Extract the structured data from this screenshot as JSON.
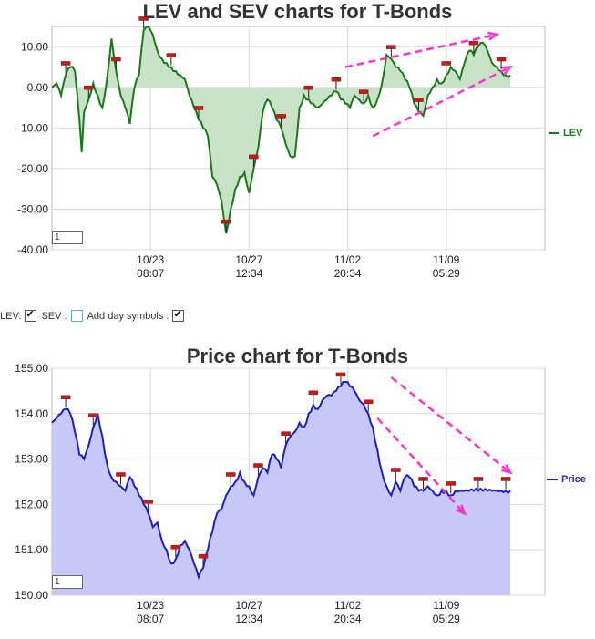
{
  "chart_data": [
    {
      "type": "line",
      "title": "LEV and SEV charts for T-Bonds",
      "ylim": [
        -40,
        15
      ],
      "yticks": [
        "10.00",
        "0.00",
        "-10.00",
        "-20.00",
        "-30.00",
        "-40.00"
      ],
      "ytick_values": [
        10,
        0,
        -10,
        -20,
        -30,
        -40
      ],
      "xticks": [
        {
          "date": "10/23",
          "time": "08:07"
        },
        {
          "date": "10/27",
          "time": "12:34"
        },
        {
          "date": "11/02",
          "time": "20:34"
        },
        {
          "date": "11/09",
          "time": "05:29"
        }
      ],
      "xtick_positions": [
        0.2,
        0.4,
        0.6,
        0.8
      ],
      "grid": true,
      "legend": "right",
      "series": [
        {
          "name": "LEV",
          "color": "#1a7a1a",
          "fill": "#c8e2c8",
          "x": [
            0,
            0.01,
            0.02,
            0.03,
            0.04,
            0.05,
            0.06,
            0.065,
            0.07,
            0.08,
            0.09,
            0.1,
            0.11,
            0.12,
            0.13,
            0.14,
            0.15,
            0.16,
            0.17,
            0.18,
            0.19,
            0.2,
            0.21,
            0.22,
            0.23,
            0.24,
            0.25,
            0.26,
            0.27,
            0.28,
            0.29,
            0.3,
            0.31,
            0.32,
            0.33,
            0.34,
            0.35,
            0.36,
            0.37,
            0.38,
            0.39,
            0.4,
            0.41,
            0.42,
            0.43,
            0.44,
            0.45,
            0.46,
            0.47,
            0.48,
            0.49,
            0.5,
            0.51,
            0.52,
            0.53,
            0.54,
            0.55,
            0.56,
            0.57,
            0.58,
            0.59,
            0.6,
            0.61,
            0.62,
            0.63,
            0.64,
            0.65,
            0.66,
            0.67,
            0.68,
            0.69,
            0.7,
            0.71,
            0.72,
            0.73,
            0.74,
            0.75,
            0.76,
            0.77,
            0.78,
            0.79,
            0.8,
            0.81,
            0.82,
            0.83,
            0.84,
            0.85,
            0.86,
            0.87,
            0.88,
            0.89,
            0.9,
            0.91,
            0.92,
            0.93,
            0.94,
            0.95,
            0.96,
            0.97,
            0.98,
            0.99,
            1.0
          ],
          "values": [
            0,
            1,
            -2,
            3,
            5,
            4,
            -8,
            -16,
            -6,
            -3,
            1,
            -2,
            -5,
            2,
            12,
            4,
            -2,
            -5,
            -9,
            0,
            3,
            14,
            15,
            13,
            9,
            7,
            6,
            5,
            4,
            3,
            2,
            -2,
            -5,
            -8,
            -10,
            -12,
            -22,
            -24,
            -28,
            -36,
            -30,
            -25,
            -22,
            -21,
            -26,
            -20,
            -15,
            -6,
            -3,
            -5,
            -8,
            -10,
            -14,
            -17,
            -17,
            -5,
            -2,
            -3,
            -4,
            -5,
            -4,
            -3,
            -2,
            -1,
            -3,
            -4,
            -5,
            -2,
            -3,
            -4,
            -2,
            -5,
            -3,
            1,
            8,
            7,
            5,
            4,
            2,
            0,
            -4,
            -6,
            -7,
            -2,
            0,
            2,
            1,
            3,
            5,
            4,
            2,
            6,
            9,
            8,
            10,
            11,
            9,
            6,
            5,
            4,
            3,
            3
          ]
        },
        {
          "name": "SEV",
          "visible": false,
          "values": []
        }
      ]
    },
    {
      "type": "area",
      "title": "Price chart for T-Bonds",
      "ylim": [
        150,
        155
      ],
      "yticks": [
        "155.00",
        "154.00",
        "153.00",
        "152.00",
        "151.00",
        "150.00"
      ],
      "ytick_values": [
        155,
        154,
        153,
        152,
        151,
        150
      ],
      "xticks": [
        {
          "date": "10/23",
          "time": "08:07"
        },
        {
          "date": "10/27",
          "time": "12:34"
        },
        {
          "date": "11/02",
          "time": "20:34"
        },
        {
          "date": "11/09",
          "time": "05:29"
        }
      ],
      "xtick_positions": [
        0.2,
        0.4,
        0.6,
        0.8
      ],
      "grid": true,
      "legend": "right",
      "series": [
        {
          "name": "Price",
          "color": "#1d1dcc",
          "fill": "#c8c8f8",
          "x": [
            0,
            0.01,
            0.02,
            0.03,
            0.04,
            0.05,
            0.06,
            0.07,
            0.08,
            0.09,
            0.1,
            0.11,
            0.12,
            0.13,
            0.14,
            0.15,
            0.16,
            0.17,
            0.18,
            0.19,
            0.2,
            0.21,
            0.22,
            0.23,
            0.24,
            0.25,
            0.26,
            0.27,
            0.28,
            0.29,
            0.3,
            0.31,
            0.32,
            0.33,
            0.34,
            0.35,
            0.36,
            0.37,
            0.38,
            0.39,
            0.4,
            0.41,
            0.42,
            0.43,
            0.44,
            0.45,
            0.46,
            0.47,
            0.48,
            0.49,
            0.5,
            0.51,
            0.52,
            0.53,
            0.54,
            0.55,
            0.56,
            0.57,
            0.58,
            0.59,
            0.6,
            0.61,
            0.62,
            0.63,
            0.64,
            0.65,
            0.66,
            0.67,
            0.68,
            0.69,
            0.7,
            0.71,
            0.72,
            0.73,
            0.74,
            0.75,
            0.76,
            0.77,
            0.78,
            0.79,
            0.8,
            0.81,
            0.82,
            0.83,
            0.84,
            0.85,
            0.86,
            0.87,
            0.88,
            0.89,
            0.9,
            0.91,
            0.92,
            0.93,
            0.94,
            0.95,
            0.96,
            0.97,
            0.98,
            0.99,
            1.0
          ],
          "values": [
            153.8,
            153.9,
            154.0,
            154.1,
            154.0,
            153.6,
            153.1,
            153.0,
            153.3,
            153.7,
            154.0,
            153.5,
            152.9,
            152.6,
            152.5,
            152.4,
            152.3,
            152.6,
            152.4,
            152.2,
            152.0,
            151.8,
            151.5,
            151.6,
            151.2,
            151.0,
            150.7,
            150.8,
            151.1,
            151.2,
            151.0,
            150.7,
            150.4,
            150.6,
            151.0,
            151.4,
            151.8,
            151.9,
            152.2,
            152.4,
            152.5,
            152.7,
            152.5,
            152.4,
            152.2,
            152.6,
            152.8,
            152.7,
            153.1,
            153.0,
            152.8,
            153.3,
            153.5,
            153.6,
            153.8,
            153.7,
            154.0,
            154.2,
            154.1,
            154.3,
            154.4,
            154.4,
            154.5,
            154.6,
            154.7,
            154.6,
            154.5,
            154.3,
            154.2,
            154.0,
            153.7,
            153.2,
            152.7,
            152.4,
            152.2,
            152.5,
            152.3,
            152.6,
            152.6,
            152.4,
            152.3,
            152.3,
            152.4,
            152.3,
            152.2,
            152.3,
            152.3,
            152.2,
            152.3,
            152.3,
            152.3,
            152.3,
            152.3,
            152.3,
            152.3,
            152.3,
            152.3,
            152.3,
            152.3,
            152.3,
            152.3
          ]
        }
      ]
    }
  ],
  "controls": {
    "lev_label": "LEV:",
    "sev_label": "SEV :",
    "day_symbols_label": "Add day symbols :",
    "lev_checked": true,
    "sev_checked": false,
    "day_symbols_checked": true
  },
  "lev_page_value": "1",
  "price_page_value": "1",
  "trend_arrow_color": "#ff33cc",
  "day_symbol_color": "#dd1111"
}
